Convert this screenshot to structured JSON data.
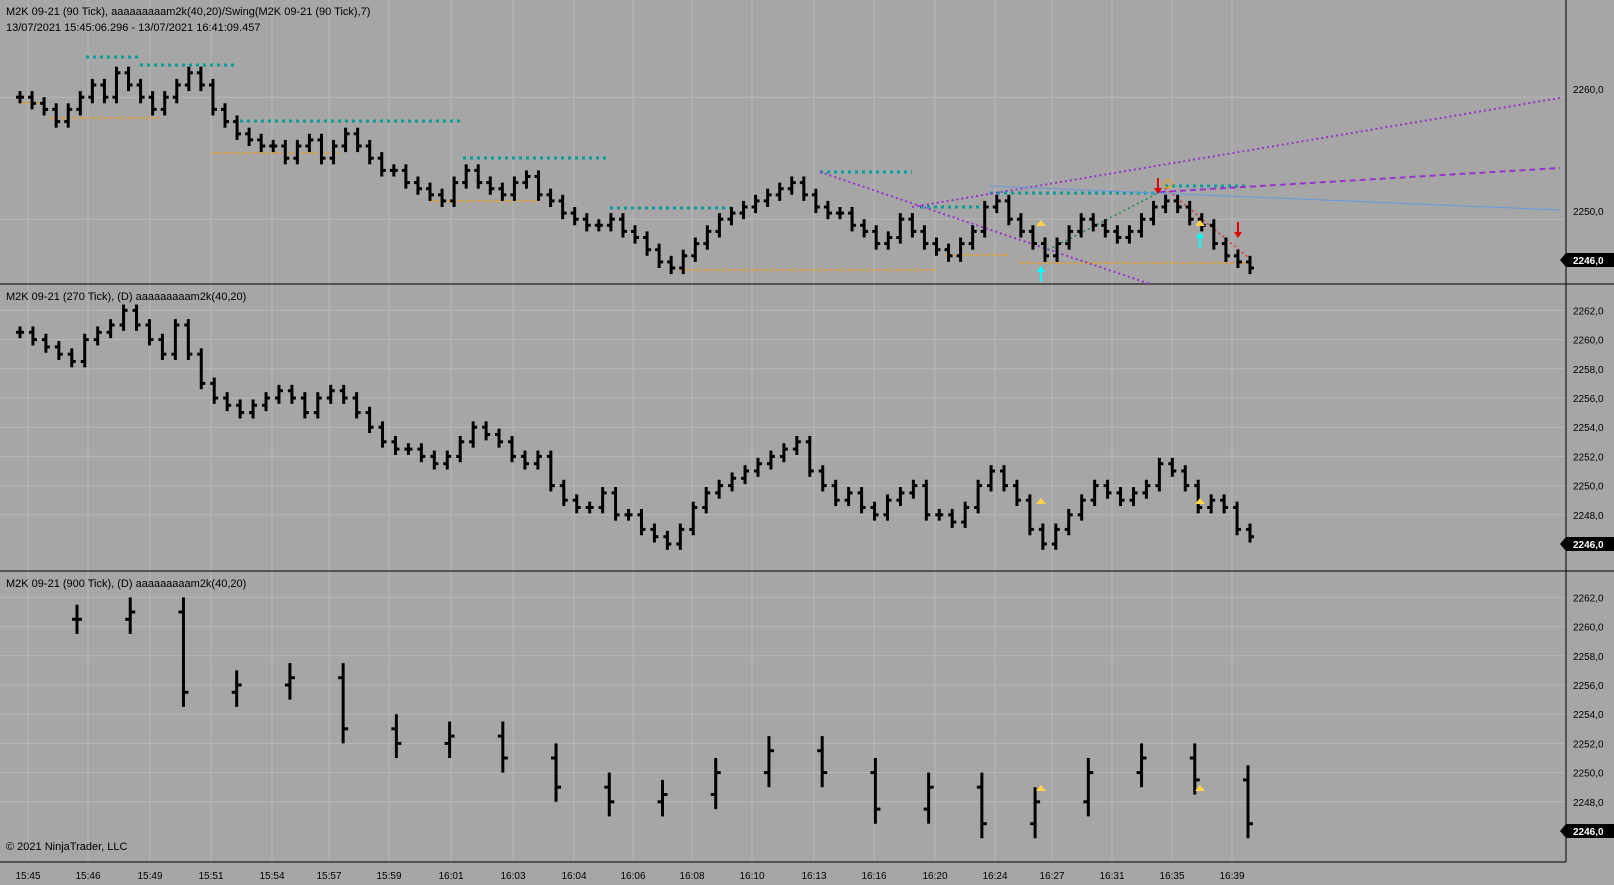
{
  "colors": {
    "background": "#a6a6a6",
    "bars": "#000000",
    "grid": "#b8b8b8",
    "swing_high": "#00a0a0",
    "swing_low": "#e0a030",
    "trend_purple": "#9933cc",
    "trend_blue": "#6699dd",
    "arrow_up": "#00ffff",
    "arrow_down": "#dd0000",
    "triangle": "#ffd24a",
    "last_price_bg": "#000000"
  },
  "panels": [
    {
      "title": "M2K 09-21 (90 Tick), aaaaaaaaam2k(40,20)/Swing(M2K 09-21 (90 Tick),7)",
      "subtitle": "13/07/2021 15:45:06.296 - 13/07/2021 16:41:09.457",
      "y_ticks": [
        "2260,0",
        "2250,0"
      ],
      "last_price": "2246,0"
    },
    {
      "title": "M2K 09-21 (270 Tick), (D) aaaaaaaaam2k(40,20)",
      "y_ticks": [
        "2262,0",
        "2260,0",
        "2258,0",
        "2256,0",
        "2254,0",
        "2252,0",
        "2250,0",
        "2248,0"
      ],
      "last_price": "2246,0"
    },
    {
      "title": "M2K 09-21 (900 Tick), (D) aaaaaaaaam2k(40,20)",
      "y_ticks": [
        "2262,0",
        "2260,0",
        "2258,0",
        "2256,0",
        "2254,0",
        "2252,0",
        "2250,0",
        "2248,0"
      ],
      "last_price": "2246,0"
    }
  ],
  "x_axis_labels": [
    "15:45",
    "15:46",
    "15:49",
    "15:51",
    "15:54",
    "15:57",
    "15:59",
    "16:01",
    "16:03",
    "16:04",
    "16:06",
    "16:08",
    "16:10",
    "16:13",
    "16:16",
    "16:20",
    "16:24",
    "16:27",
    "16:31",
    "16:35",
    "16:39"
  ],
  "copyright": "© 2021 NinjaTrader, LLC",
  "series": {
    "p1": [
      2260,
      2259.5,
      2259,
      2258,
      2259,
      2260,
      2261,
      2260,
      2262,
      2261,
      2260,
      2259,
      2260,
      2261,
      2262,
      2261,
      2259,
      2258,
      2257,
      2256.5,
      2256,
      2256,
      2255,
      2256,
      2256.5,
      2255,
      2256,
      2257,
      2256,
      2255,
      2254,
      2254,
      2253,
      2252.5,
      2252,
      2251.5,
      2253,
      2254,
      2253,
      2252.5,
      2252,
      2253,
      2253.5,
      2252,
      2251.5,
      2250.5,
      2250,
      2249.5,
      2249.5,
      2250,
      2249,
      2248.5,
      2247.5,
      2246.5,
      2246,
      2247,
      2248,
      2249,
      2250,
      2250.5,
      2251,
      2251.5,
      2252,
      2252.5,
      2253,
      2252,
      2251,
      2250.5,
      2250.5,
      2249.5,
      2249,
      2248,
      2248.5,
      2250,
      2249,
      2248,
      2247.5,
      2247,
      2248,
      2249,
      2251,
      2251.5,
      2250,
      2249,
      2248,
      2247,
      2248,
      2249,
      2250,
      2249.5,
      2249,
      2248.5,
      2249,
      2250,
      2251,
      2251.5,
      2251,
      2250,
      2249.5,
      2248,
      2247,
      2246.5,
      2246
    ],
    "p2": [
      2260.5,
      2260,
      2259.5,
      2259,
      2258.5,
      2260,
      2260.5,
      2261,
      2262,
      2261,
      2260,
      2259,
      2261,
      2259,
      2257,
      2256,
      2255.5,
      2255,
      2255.5,
      2256,
      2256.5,
      2256,
      2255,
      2256,
      2256.5,
      2256,
      2255,
      2254,
      2253,
      2252.5,
      2252.5,
      2252,
      2251.5,
      2252,
      2253,
      2254,
      2253.5,
      2253,
      2252,
      2251.5,
      2252,
      2250,
      2249,
      2248.5,
      2248.5,
      2249.5,
      2248,
      2248,
      2247,
      2246.5,
      2246,
      2247,
      2248.5,
      2249.5,
      2250,
      2250.5,
      2251,
      2251.5,
      2252,
      2252.5,
      2253,
      2251,
      2250,
      2249,
      2249.5,
      2248.5,
      2248,
      2249,
      2249.5,
      2250,
      2248,
      2248,
      2247.5,
      2248.5,
      2250,
      2251,
      2250,
      2249,
      2247,
      2246,
      2247,
      2248,
      2249,
      2250,
      2249.5,
      2249,
      2249.5,
      2250,
      2251.5,
      2251,
      2250,
      2248.5,
      2249,
      2248.5,
      2247,
      2246.5
    ],
    "p3": [
      2260.5,
      2261,
      2255.5,
      2256,
      2256.5,
      2253,
      2252,
      2252.5,
      2251,
      2249,
      2248,
      2248.5,
      2250,
      2251.5,
      2250,
      2247.5,
      2249,
      2246.5,
      2248,
      2250,
      2251,
      2249.5,
      2246.5
    ]
  }
}
